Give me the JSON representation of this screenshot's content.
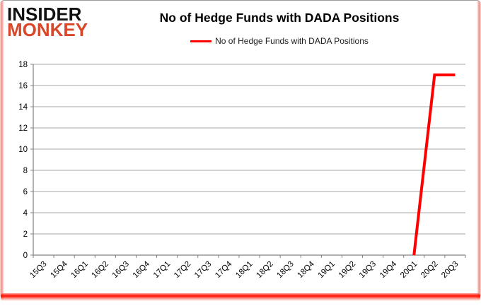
{
  "logo": {
    "line1": "INSIDER",
    "line2": "MONKEY",
    "line1_color": "#111111",
    "line2_color": "#d9472b"
  },
  "header": {
    "title": "No of Hedge Funds with DADA Positions"
  },
  "legend": {
    "label": "No of Hedge Funds with DADA Positions",
    "swatch_color": "#ff0000"
  },
  "chart_data": {
    "type": "line",
    "title": "No of Hedge Funds with DADA Positions",
    "categories": [
      "15Q3",
      "15Q4",
      "16Q1",
      "16Q2",
      "16Q3",
      "16Q4",
      "17Q1",
      "17Q2",
      "17Q3",
      "17Q4",
      "18Q1",
      "18Q2",
      "18Q3",
      "18Q4",
      "19Q1",
      "19Q2",
      "19Q3",
      "19Q4",
      "20Q1",
      "20Q2",
      "20Q3"
    ],
    "series": [
      {
        "name": "No of Hedge Funds with DADA Positions",
        "color": "#ff0000",
        "values": [
          null,
          null,
          null,
          null,
          null,
          null,
          null,
          null,
          null,
          null,
          null,
          null,
          null,
          null,
          null,
          null,
          null,
          null,
          0,
          17,
          17
        ]
      }
    ],
    "xlabel": "",
    "ylabel": "",
    "ylim": [
      0,
      18
    ],
    "ytick_step": 2,
    "grid": true,
    "grid_color": "#a6a6a6",
    "axis_color": "#808080",
    "tick_label_size": 11.5,
    "legend_position": "top"
  }
}
